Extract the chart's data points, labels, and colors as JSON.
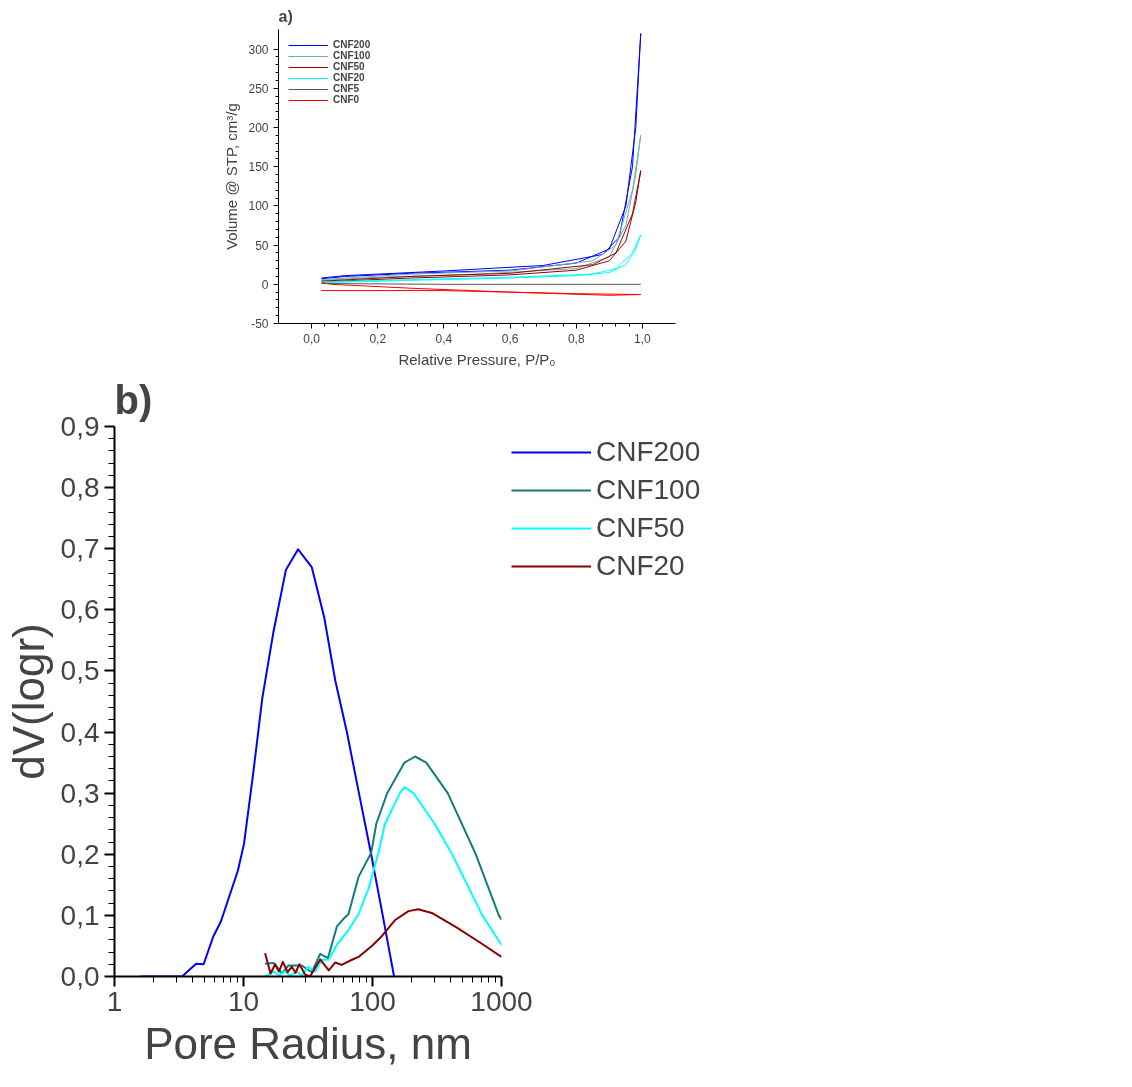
{
  "chart_data": [
    {
      "type": "line",
      "title": "a)",
      "xlabel": "Relative Pressure, P/P₀",
      "ylabel": "Volume @ STP, cm³/g",
      "xlim": [
        -0.1,
        1.1
      ],
      "ylim": [
        -50,
        325
      ],
      "xticks": [
        {
          "value": 0,
          "label": "0,0"
        },
        {
          "value": 0.2,
          "label": "0,2"
        },
        {
          "value": 0.4,
          "label": "0,4"
        },
        {
          "value": 0.6,
          "label": "0,6"
        },
        {
          "value": 0.8,
          "label": "0,8"
        },
        {
          "value": 1.0,
          "label": "1,0"
        }
      ],
      "yticks": [
        -50,
        0,
        50,
        100,
        150,
        200,
        250,
        300
      ],
      "grid": false,
      "legend": "top left",
      "line_style": "solid",
      "marker": "none",
      "series": [
        {
          "name": "CNF200",
          "color": "#0000ff",
          "x": [
            0.03,
            0.1,
            0.3,
            0.6,
            0.8,
            0.9,
            0.95,
            0.98,
            0.995,
            0.97,
            0.93,
            0.88,
            0.7,
            0.4,
            0.1,
            0.03
          ],
          "values": [
            7,
            10,
            14,
            18,
            27,
            45,
            100,
            200,
            320,
            150,
            60,
            38,
            24,
            17,
            11,
            8
          ]
        },
        {
          "name": "CNF100",
          "color": "#66b3b3",
          "x": [
            0.03,
            0.2,
            0.5,
            0.8,
            0.9,
            0.95,
            0.98,
            0.995,
            0.97,
            0.92,
            0.85,
            0.6,
            0.3,
            0.03
          ],
          "values": [
            5,
            9,
            13,
            20,
            35,
            75,
            140,
            190,
            120,
            50,
            30,
            17,
            13,
            6
          ]
        },
        {
          "name": "CNF50",
          "color": "#990000",
          "x": [
            0.03,
            0.3,
            0.6,
            0.8,
            0.9,
            0.95,
            0.98,
            0.995,
            0.97,
            0.92,
            0.85,
            0.6,
            0.3,
            0.03
          ],
          "values": [
            3,
            8,
            12,
            18,
            30,
            55,
            105,
            145,
            90,
            40,
            25,
            14,
            10,
            4
          ]
        },
        {
          "name": "CNF20",
          "color": "#00ffff",
          "x": [
            0.03,
            0.3,
            0.6,
            0.8,
            0.9,
            0.95,
            0.98,
            0.995,
            0.97,
            0.92,
            0.85,
            0.6,
            0.3,
            0.03
          ],
          "values": [
            2,
            5,
            8,
            11,
            15,
            25,
            45,
            63,
            40,
            20,
            13,
            9,
            6,
            3
          ]
        },
        {
          "name": "CNF5",
          "color": "#555555",
          "x": [
            0.03,
            0.4,
            0.995
          ],
          "values": [
            1,
            0,
            0
          ]
        },
        {
          "name": "CNF0",
          "color": "#ff0000",
          "x": [
            0.03,
            0.4,
            0.8,
            0.995,
            0.9,
            0.6,
            0.3,
            0.06,
            0.03
          ],
          "values": [
            -8,
            -8,
            -12,
            -13,
            -14,
            -10,
            -5,
            0,
            2
          ]
        }
      ]
    },
    {
      "type": "line",
      "title": "b)",
      "xlabel": "Pore Radius, nm",
      "ylabel": "dV(logr)",
      "log": "x",
      "xlim": [
        1,
        1000
      ],
      "ylim": [
        0,
        0.9
      ],
      "xticks": [
        1,
        10,
        100,
        1000
      ],
      "yticks": [
        {
          "value": 0,
          "label": "0,0"
        },
        {
          "value": 0.1,
          "label": "0,1"
        },
        {
          "value": 0.2,
          "label": "0,2"
        },
        {
          "value": 0.3,
          "label": "0,3"
        },
        {
          "value": 0.4,
          "label": "0,4"
        },
        {
          "value": 0.5,
          "label": "0,5"
        },
        {
          "value": 0.6,
          "label": "0,6"
        },
        {
          "value": 0.7,
          "label": "0,7"
        },
        {
          "value": 0.8,
          "label": "0,8"
        },
        {
          "value": 0.9,
          "label": "0,9"
        }
      ],
      "grid": false,
      "legend": "right",
      "line_style": "solid",
      "marker": "none",
      "series": [
        {
          "name": "CNF200",
          "color": "#0000ff",
          "x": [
            1.59,
            3.34,
            4.29,
            4.91,
            5.82,
            6.68,
            9.04,
            10.09,
            11.9,
            14.0,
            17.0,
            21.3,
            26.5,
            33.8,
            42.3,
            51.5,
            63.3,
            78.5,
            97.6,
            120,
            147
          ],
          "values": [
            0,
            0,
            0.021,
            0.02,
            0.065,
            0.09,
            0.173,
            0.217,
            0.333,
            0.456,
            0.562,
            0.665,
            0.699,
            0.67,
            0.587,
            0.484,
            0.4,
            0.3,
            0.2,
            0.1,
            0
          ]
        },
        {
          "name": "CNF100",
          "color": "#137d7d",
          "x": [
            14.7,
            17.2,
            19.9,
            22.3,
            28.3,
            33.8,
            39.3,
            45.1,
            53.0,
            59.4,
            65.1,
            77.9,
            97.6,
            107,
            130,
            177,
            214,
            261,
            383,
            632,
            954,
            1000
          ],
          "values": [
            0.021,
            0.022,
            0.005,
            0.018,
            0.018,
            0.007,
            0.037,
            0.03,
            0.082,
            0.094,
            0.102,
            0.163,
            0.202,
            0.25,
            0.3,
            0.35,
            0.36,
            0.35,
            0.3,
            0.2,
            0.1,
            0.093
          ]
        },
        {
          "name": "CNF50",
          "color": "#00ffff",
          "x": [
            14.7,
            17.2,
            18.8,
            21.1,
            23.0,
            25.9,
            28.3,
            31.8,
            36.0,
            40.5,
            45.8,
            53.0,
            65.1,
            77.9,
            93.3,
            111,
            125,
            163,
            177,
            208,
            303,
            414,
            710,
            1000
          ],
          "values": [
            0,
            0.008,
            0.002,
            0.009,
            0.001,
            0.009,
            0.001,
            0.016,
            0.008,
            0.027,
            0.028,
            0.052,
            0.076,
            0.102,
            0.144,
            0.202,
            0.25,
            0.3,
            0.31,
            0.3,
            0.25,
            0.2,
            0.1,
            0.052
          ]
        },
        {
          "name": "CNF20",
          "color": "#8b0000",
          "x": [
            14.7,
            16.2,
            17.6,
            18.8,
            20.2,
            22.0,
            23.7,
            25.3,
            27.1,
            30.1,
            32.8,
            39.3,
            45.8,
            51.5,
            57.6,
            68.7,
            77.9,
            98.8,
            118,
            149,
            190,
            226,
            288,
            451,
            700,
            1000
          ],
          "values": [
            0.038,
            0.005,
            0.02,
            0.008,
            0.024,
            0.007,
            0.016,
            0.006,
            0.02,
            0.003,
            0,
            0.028,
            0.01,
            0.023,
            0.019,
            0.027,
            0.032,
            0.05,
            0.066,
            0.092,
            0.107,
            0.11,
            0.104,
            0.08,
            0.054,
            0.032
          ]
        }
      ]
    }
  ]
}
